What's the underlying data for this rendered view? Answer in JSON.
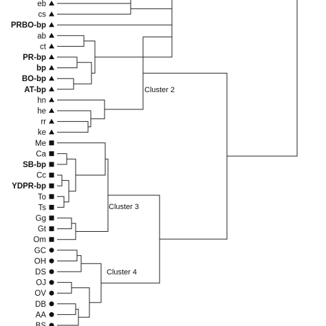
{
  "dendrogram": {
    "leaves": [
      {
        "label": "eb",
        "bold": false,
        "marker": "triangle"
      },
      {
        "label": "cs",
        "bold": false,
        "marker": "triangle"
      },
      {
        "label": "PRBO-bp",
        "bold": true,
        "marker": "triangle"
      },
      {
        "label": "ab",
        "bold": false,
        "marker": "triangle"
      },
      {
        "label": "ct",
        "bold": false,
        "marker": "triangle"
      },
      {
        "label": "PR-bp",
        "bold": true,
        "marker": "triangle"
      },
      {
        "label": "bp",
        "bold": true,
        "marker": "triangle"
      },
      {
        "label": "BO-bp",
        "bold": true,
        "marker": "triangle"
      },
      {
        "label": "AT-bp",
        "bold": true,
        "marker": "triangle"
      },
      {
        "label": "hn",
        "bold": false,
        "marker": "triangle"
      },
      {
        "label": "he",
        "bold": false,
        "marker": "triangle"
      },
      {
        "label": "rr",
        "bold": false,
        "marker": "triangle"
      },
      {
        "label": "ke",
        "bold": false,
        "marker": "triangle"
      },
      {
        "label": "Me",
        "bold": false,
        "marker": "square"
      },
      {
        "label": "Ca",
        "bold": false,
        "marker": "square"
      },
      {
        "label": "SB-bp",
        "bold": true,
        "marker": "square"
      },
      {
        "label": "Cc",
        "bold": false,
        "marker": "square"
      },
      {
        "label": "YDPR-bp",
        "bold": true,
        "marker": "square"
      },
      {
        "label": "To",
        "bold": false,
        "marker": "square"
      },
      {
        "label": "Ts",
        "bold": false,
        "marker": "square"
      },
      {
        "label": "Gg",
        "bold": false,
        "marker": "square"
      },
      {
        "label": "Gt",
        "bold": false,
        "marker": "square"
      },
      {
        "label": "Om",
        "bold": false,
        "marker": "square"
      },
      {
        "label": "GC",
        "bold": false,
        "marker": "circle"
      },
      {
        "label": "OH",
        "bold": false,
        "marker": "circle"
      },
      {
        "label": "DS",
        "bold": false,
        "marker": "circle"
      },
      {
        "label": "OJ",
        "bold": false,
        "marker": "circle"
      },
      {
        "label": "OV",
        "bold": false,
        "marker": "circle"
      },
      {
        "label": "DB",
        "bold": false,
        "marker": "circle"
      },
      {
        "label": "AA",
        "bold": false,
        "marker": "circle"
      },
      {
        "label": "BS",
        "bold": false,
        "marker": "circle"
      }
    ],
    "clusters": [
      {
        "label": "Cluster 2"
      },
      {
        "label": "Cluster 3"
      },
      {
        "label": "Cluster 4"
      }
    ],
    "marker_color": "#111111",
    "line_color": "#222222"
  }
}
